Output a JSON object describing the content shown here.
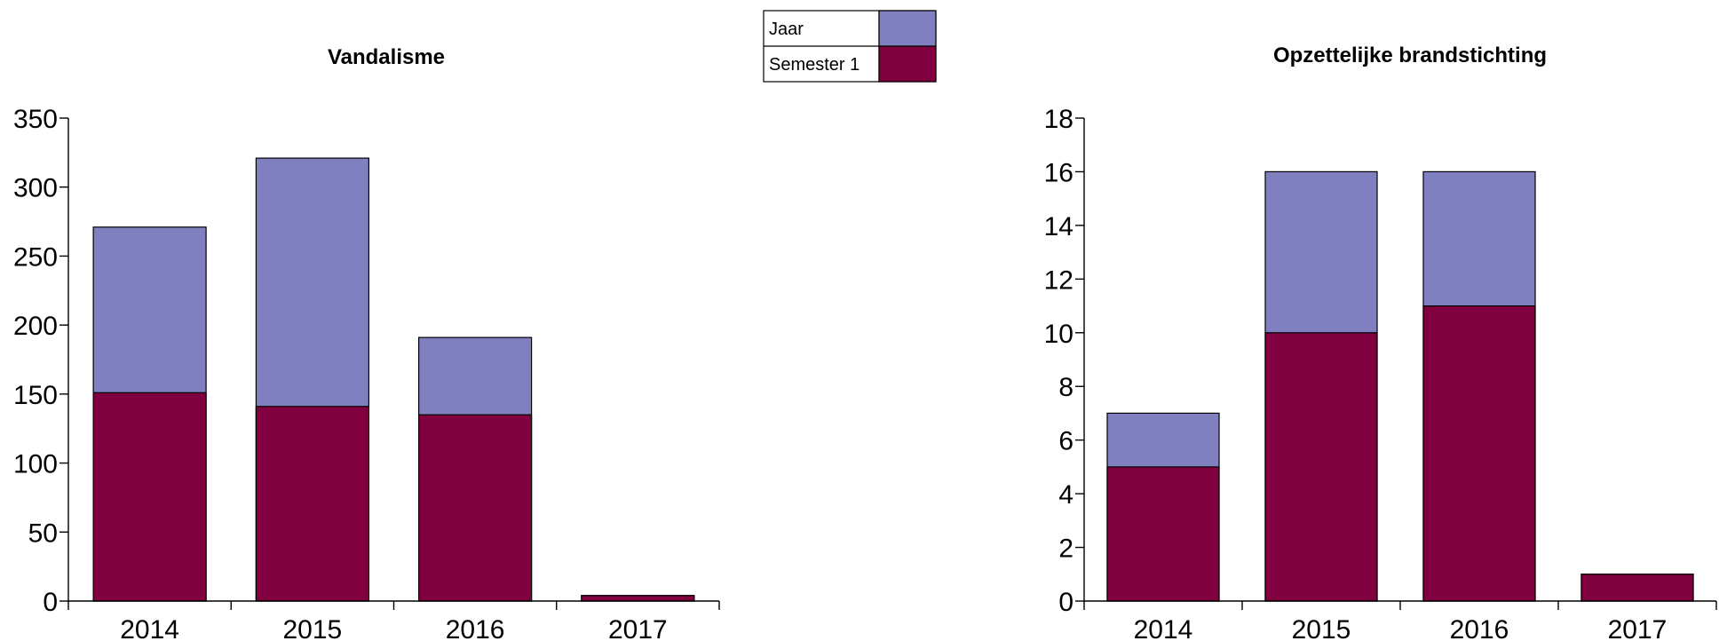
{
  "legend": {
    "items": [
      {
        "label": "Jaar",
        "color": "#8080c0"
      },
      {
        "label": "Semester 1",
        "color": "#800040"
      }
    ]
  },
  "chart_data": [
    {
      "type": "bar",
      "stacking": "overlay",
      "title": "Vandalisme",
      "categories": [
        "2014",
        "2015",
        "2016",
        "2017"
      ],
      "series": [
        {
          "name": "Jaar",
          "values": [
            271,
            321,
            191,
            4
          ],
          "color": "#8080c0"
        },
        {
          "name": "Semester 1",
          "values": [
            151,
            141,
            135,
            4
          ],
          "color": "#800040"
        }
      ],
      "ylim": [
        0,
        350
      ],
      "yticks": [
        0,
        50,
        100,
        150,
        200,
        250,
        300,
        350
      ],
      "xlabel": "",
      "ylabel": "",
      "grid": false
    },
    {
      "type": "bar",
      "stacking": "overlay",
      "title": "Opzettelijke brandstichting",
      "categories": [
        "2014",
        "2015",
        "2016",
        "2017"
      ],
      "series": [
        {
          "name": "Jaar",
          "values": [
            7,
            16,
            16,
            1
          ],
          "color": "#8080c0"
        },
        {
          "name": "Semester 1",
          "values": [
            5,
            10,
            11,
            1
          ],
          "color": "#800040"
        }
      ],
      "ylim": [
        0,
        18
      ],
      "yticks": [
        0,
        2,
        4,
        6,
        8,
        10,
        12,
        14,
        16,
        18
      ],
      "xlabel": "",
      "ylabel": "",
      "grid": false
    }
  ]
}
